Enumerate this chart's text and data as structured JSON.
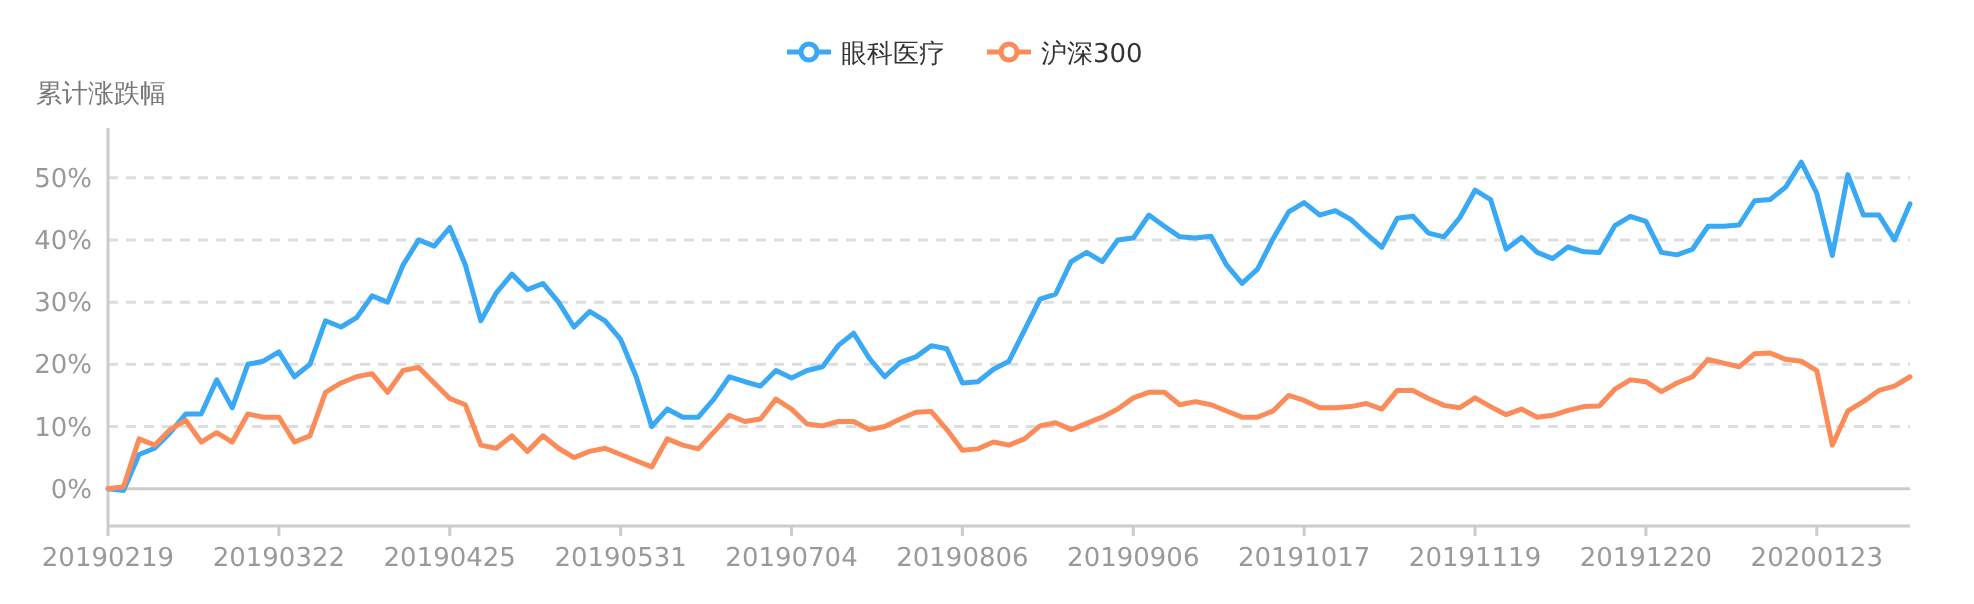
{
  "chart_data": {
    "type": "line",
    "ylabel": "累计涨跌幅",
    "categories": [
      "20190219",
      null,
      null,
      null,
      null,
      null,
      null,
      null,
      null,
      null,
      null,
      "20190322",
      null,
      null,
      null,
      null,
      null,
      null,
      null,
      null,
      null,
      null,
      "20190425",
      null,
      null,
      null,
      null,
      null,
      null,
      null,
      null,
      null,
      null,
      "20190531",
      null,
      null,
      null,
      null,
      null,
      null,
      null,
      null,
      null,
      null,
      "20190704",
      null,
      null,
      null,
      null,
      null,
      null,
      null,
      null,
      null,
      null,
      "20190806",
      null,
      null,
      null,
      null,
      null,
      null,
      null,
      null,
      null,
      null,
      "20190906",
      null,
      null,
      null,
      null,
      null,
      null,
      null,
      null,
      null,
      null,
      "20191017",
      null,
      null,
      null,
      null,
      null,
      null,
      null,
      null,
      null,
      null,
      "20191119",
      null,
      null,
      null,
      null,
      null,
      null,
      null,
      null,
      null,
      null,
      "20191220",
      null,
      null,
      null,
      null,
      null,
      null,
      null,
      null,
      null,
      null,
      "20200123",
      null,
      null,
      null,
      null,
      null,
      null
    ],
    "series": [
      {
        "name": "眼科医疗",
        "color": "#3aa9f5",
        "values": [
          0,
          -0.3,
          5.5,
          6.5,
          9,
          12,
          12,
          17.5,
          13,
          20,
          20.5,
          22,
          18,
          20,
          27,
          26,
          27.5,
          31,
          30,
          36,
          40,
          39,
          42,
          36,
          27,
          31.5,
          34.5,
          32,
          33,
          30,
          26,
          28.5,
          27,
          24,
          18,
          10,
          12.8,
          11.5,
          11.5,
          14.4,
          18,
          17.2,
          16.5,
          19,
          17.8,
          19,
          19.6,
          23,
          25,
          21,
          18,
          20.3,
          21.2,
          23,
          22.5,
          17,
          17.2,
          19.2,
          20.5,
          25.5,
          30.5,
          31.3,
          36.5,
          38,
          36.5,
          40,
          40.3,
          44,
          42.2,
          40.5,
          40.3,
          40.6,
          36,
          33,
          35.3,
          40.2,
          44.5,
          46,
          44,
          44.7,
          43.3,
          41,
          38.8,
          43.5,
          43.8,
          41.1,
          40.5,
          43.5,
          48,
          46.5,
          38.5,
          40.4,
          38,
          37,
          38.9,
          38.1,
          38,
          42.3,
          43.8,
          43,
          38,
          37.6,
          38.5,
          42.2,
          42.2,
          42.4,
          46.3,
          46.5,
          48.5,
          52.5,
          47.5,
          37.5,
          50.5,
          44,
          44,
          40,
          45.8
        ]
      },
      {
        "name": "沪深300",
        "color": "#fb8c5a",
        "values": [
          0,
          0.3,
          8,
          7,
          9.5,
          11,
          7.5,
          9,
          7.5,
          12,
          11.5,
          11.5,
          7.5,
          8.5,
          15.5,
          17,
          18,
          18.5,
          15.5,
          19,
          19.5,
          17,
          14.5,
          13.5,
          7,
          6.5,
          8.5,
          6,
          8.5,
          6.5,
          5,
          6,
          6.5,
          5.5,
          4.5,
          3.5,
          8,
          7,
          6.4,
          9.1,
          11.8,
          10.8,
          11.2,
          14.4,
          12.8,
          10.4,
          10.1,
          10.8,
          10.8,
          9.5,
          10,
          11.2,
          12.3,
          12.4,
          9.5,
          6.2,
          6.4,
          7.5,
          7,
          8,
          10.1,
          10.6,
          9.5,
          10.5,
          11.5,
          12.8,
          14.6,
          15.5,
          15.5,
          13.5,
          14,
          13.5,
          12.5,
          11.5,
          11.5,
          12.5,
          15,
          14.2,
          13,
          13,
          13.2,
          13.7,
          12.8,
          15.8,
          15.8,
          14.5,
          13.4,
          13,
          14.6,
          13.2,
          11.9,
          12.8,
          11.5,
          11.8,
          12.6,
          13.2,
          13.3,
          16,
          17.5,
          17.2,
          15.6,
          17,
          18,
          20.8,
          20.2,
          19.6,
          21.7,
          21.8,
          20.8,
          20.5,
          19,
          7,
          12.5,
          14,
          15.8,
          16.5,
          18
        ]
      }
    ],
    "ylim": [
      -6,
      58
    ],
    "yticks": [
      {
        "value": 0,
        "label": "0%"
      },
      {
        "value": 10,
        "label": "10%"
      },
      {
        "value": 20,
        "label": "20%"
      },
      {
        "value": 30,
        "label": "30%"
      },
      {
        "value": 40,
        "label": "40%"
      },
      {
        "value": 50,
        "label": "50%"
      }
    ],
    "grid": "y",
    "legend": "top",
    "marker": "none",
    "line_style": "solid"
  }
}
